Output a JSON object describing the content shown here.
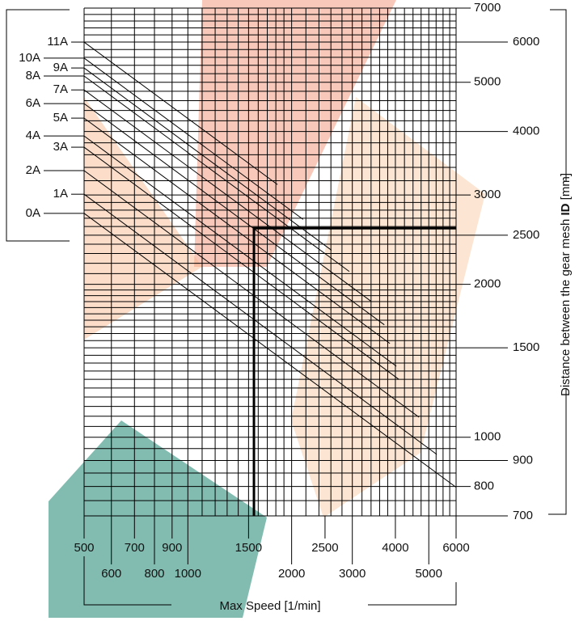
{
  "chart_data": {
    "type": "line",
    "x_label": "Max Speed [1/min]",
    "y_label": "Distance between the gear mesh",
    "y_label_symbol": "ID",
    "y_label_unit": "[mm]",
    "log_x": true,
    "log_y": true,
    "xlim": [
      500,
      6000
    ],
    "ylim": [
      700,
      7000
    ],
    "xticks": [
      500,
      600,
      700,
      800,
      900,
      1000,
      1500,
      2000,
      2500,
      3000,
      4000,
      5000,
      6000
    ],
    "yticks": [
      700,
      800,
      900,
      1000,
      1500,
      2000,
      2500,
      3000,
      4000,
      5000,
      6000,
      7000
    ],
    "xgrid": [
      500,
      600,
      700,
      800,
      900,
      1000,
      1100,
      1200,
      1300,
      1400,
      1500,
      1600,
      1700,
      1800,
      1900,
      2000,
      2200,
      2400,
      2600,
      2800,
      3000,
      3200,
      3400,
      3600,
      3800,
      4000,
      4250,
      4500,
      4750,
      5000,
      5250,
      5500,
      5750,
      6000
    ],
    "ygrid": [
      700,
      750,
      800,
      850,
      900,
      950,
      1000,
      1050,
      1100,
      1150,
      1200,
      1250,
      1300,
      1350,
      1400,
      1450,
      1500,
      1550,
      1600,
      1650,
      1700,
      1750,
      1800,
      1850,
      1900,
      1950,
      2000,
      2100,
      2200,
      2300,
      2400,
      2500,
      2600,
      2700,
      2800,
      2900,
      3000,
      3200,
      3400,
      3600,
      3800,
      4000,
      4200,
      4400,
      4600,
      4800,
      5000,
      5200,
      5400,
      5600,
      5800,
      6000,
      6200,
      6400,
      6600,
      6800,
      7000
    ],
    "example_point": {
      "x": 1555,
      "y": 2580
    },
    "series": [
      {
        "name": "0A",
        "color": "#000000",
        "x": [
          500,
          6000
        ],
        "values": [
          2760,
          797
        ]
      },
      {
        "name": "1A",
        "color": "#000000",
        "x": [
          500,
          5275
        ],
        "values": [
          3010,
          925
        ]
      },
      {
        "name": "2A",
        "color": "#000000",
        "x": [
          500,
          4685
        ],
        "values": [
          3350,
          1095
        ]
      },
      {
        "name": "3A",
        "color": "#000000",
        "x": [
          500,
          4095
        ],
        "values": [
          3725,
          1300
        ]
      },
      {
        "name": "4A",
        "color": "#000000",
        "x": [
          500,
          4025
        ],
        "values": [
          3920,
          1380
        ]
      },
      {
        "name": "5A",
        "color": "#000000",
        "x": [
          500,
          3855
        ],
        "values": [
          4250,
          1530
        ]
      },
      {
        "name": "6A",
        "color": "#000000",
        "x": [
          500,
          3715
        ],
        "values": [
          4540,
          1665
        ]
      },
      {
        "name": "7A",
        "color": "#000000",
        "x": [
          500,
          3390
        ],
        "values": [
          4830,
          1855
        ]
      },
      {
        "name": "8A",
        "color": "#000000",
        "x": [
          500,
          2940
        ],
        "values": [
          5145,
          2120
        ]
      },
      {
        "name": "9A",
        "color": "#000000",
        "x": [
          500,
          2610
        ],
        "values": [
          5335,
          2335
        ]
      },
      {
        "name": "10A",
        "color": "#000000",
        "x": [
          500,
          2160
        ],
        "values": [
          5580,
          2685
        ]
      },
      {
        "name": "11A",
        "color": "#000000",
        "x": [
          500,
          1820
        ],
        "values": [
          6000,
          3145
        ]
      }
    ]
  }
}
